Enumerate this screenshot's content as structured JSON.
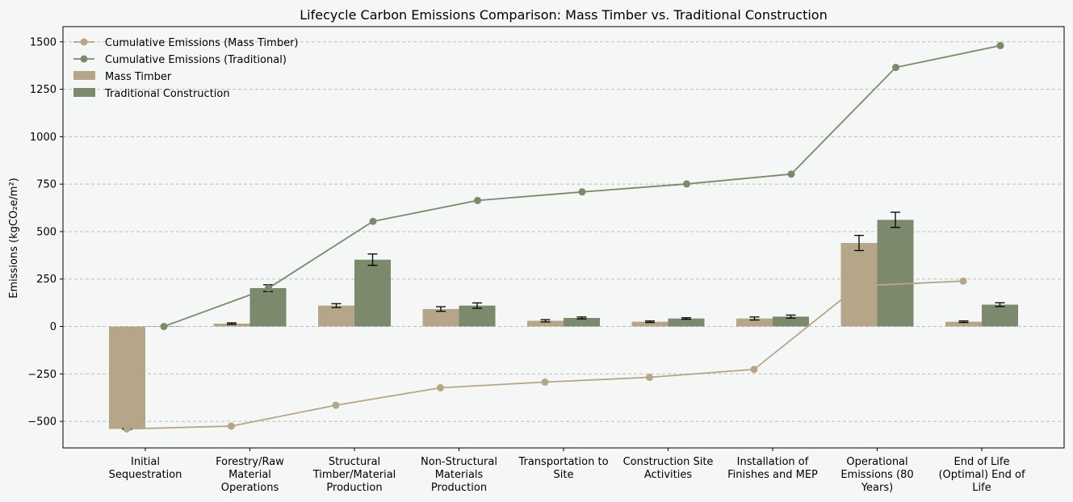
{
  "chart_data": {
    "type": "bar",
    "title": "Lifecycle Carbon Emissions Comparison: Mass Timber vs. Traditional Construction",
    "xlabel": "",
    "ylabel": "Emissions (kgCO₂e/m²)",
    "ylim": [
      -640,
      1580
    ],
    "yticks": [
      -500,
      -250,
      0,
      250,
      500,
      750,
      1000,
      1250,
      1500
    ],
    "ytick_labels": [
      "−500",
      "−250",
      "0",
      "250",
      "500",
      "750",
      "1000",
      "1250",
      "1500"
    ],
    "grid": "horizontal dashed",
    "legend_position": "top-left",
    "categories": [
      [
        "Initial",
        "Sequestration"
      ],
      [
        "Forestry/Raw",
        "Material",
        "Operations"
      ],
      [
        "Structural",
        "Timber/Material",
        "Production"
      ],
      [
        "Non-Structural",
        "Materials",
        "Production"
      ],
      [
        "Transportation to",
        "Site"
      ],
      [
        "Construction Site",
        "Activities"
      ],
      [
        "Installation of",
        "Finishes and MEP"
      ],
      [
        "Operational",
        "Emissions (80",
        "Years)"
      ],
      [
        "End of Life",
        "(Optimal) End of",
        "Life"
      ]
    ],
    "series": [
      {
        "name": "Mass Timber",
        "kind": "bar",
        "color": "#b5a68a",
        "values": [
          -540,
          15,
          110,
          92,
          30,
          25,
          42,
          440,
          25
        ],
        "errors": [
          3,
          4,
          10,
          12,
          6,
          4,
          8,
          40,
          4
        ]
      },
      {
        "name": "Traditional Construction",
        "kind": "bar",
        "color": "#7d896d",
        "values": [
          0,
          202,
          352,
          110,
          45,
          42,
          52,
          562,
          115
        ],
        "errors": [
          0,
          18,
          30,
          14,
          5,
          4,
          8,
          40,
          10
        ]
      },
      {
        "name": "Cumulative Emissions (Mass Timber)",
        "kind": "line",
        "color": "#b5a68a",
        "values": [
          -540,
          -525,
          -415,
          -323,
          -293,
          -268,
          -226,
          214,
          239
        ]
      },
      {
        "name": "Cumulative Emissions (Traditional)",
        "kind": "line",
        "color": "#7d896d",
        "values": [
          0,
          202,
          554,
          664,
          709,
          751,
          803,
          1365,
          1480
        ]
      }
    ],
    "legend": [
      "Cumulative Emissions (Mass Timber)",
      "Cumulative Emissions (Traditional)",
      "Mass Timber",
      "Traditional Construction"
    ]
  }
}
